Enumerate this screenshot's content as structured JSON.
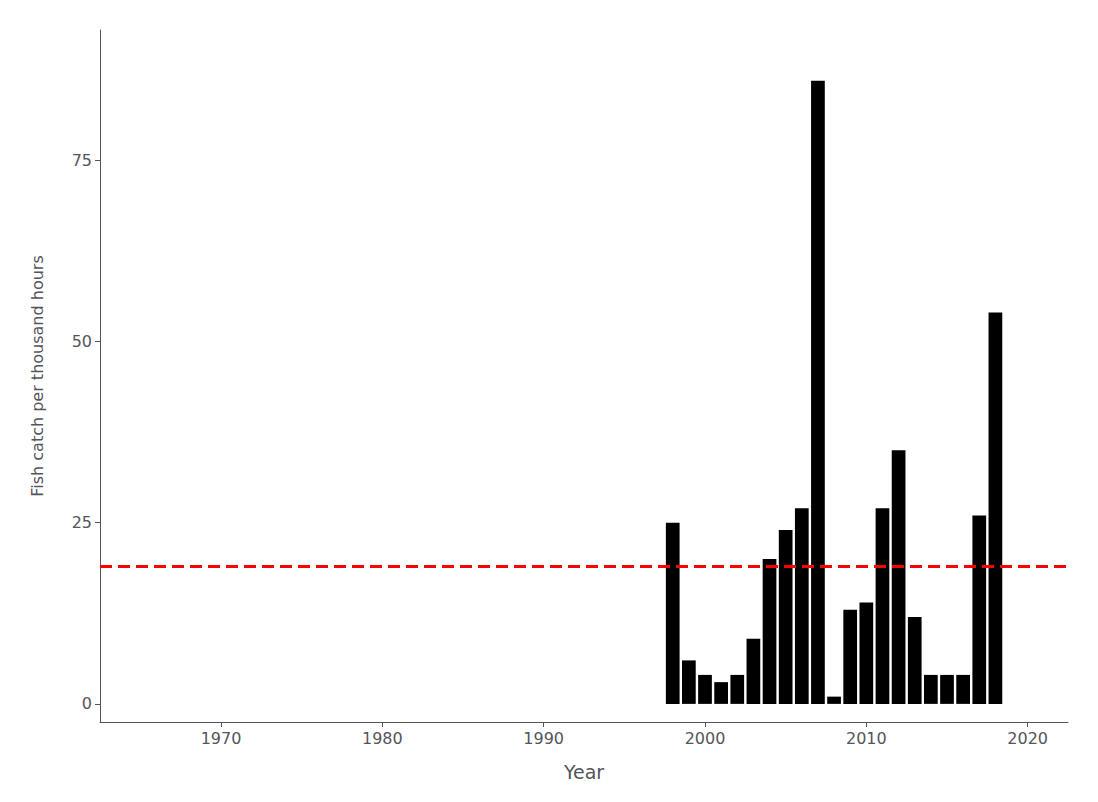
{
  "chart_data": {
    "type": "bar",
    "xlabel": "Year",
    "ylabel": "Fish catch per thousand hours",
    "x": [
      1998,
      1999,
      2000,
      2001,
      2002,
      2003,
      2004,
      2005,
      2006,
      2007,
      2008,
      2009,
      2010,
      2011,
      2012,
      2013,
      2014,
      2015,
      2016,
      2017,
      2018
    ],
    "values": [
      25,
      6,
      4,
      3,
      4,
      9,
      20,
      24,
      27,
      86,
      1,
      13,
      14,
      27,
      35,
      12,
      4,
      4,
      4,
      26,
      54
    ],
    "color": "#000000",
    "xlim": [
      1962.5,
      2022.5
    ],
    "ylim": [
      -2.5,
      93
    ],
    "xticks": [
      1970,
      1980,
      1990,
      2000,
      2010,
      2020
    ],
    "yticks": [
      0,
      25,
      50,
      75
    ],
    "grid": false,
    "reference_line": {
      "value": 19,
      "color": "#FF0000",
      "line_style": "dashed"
    }
  }
}
